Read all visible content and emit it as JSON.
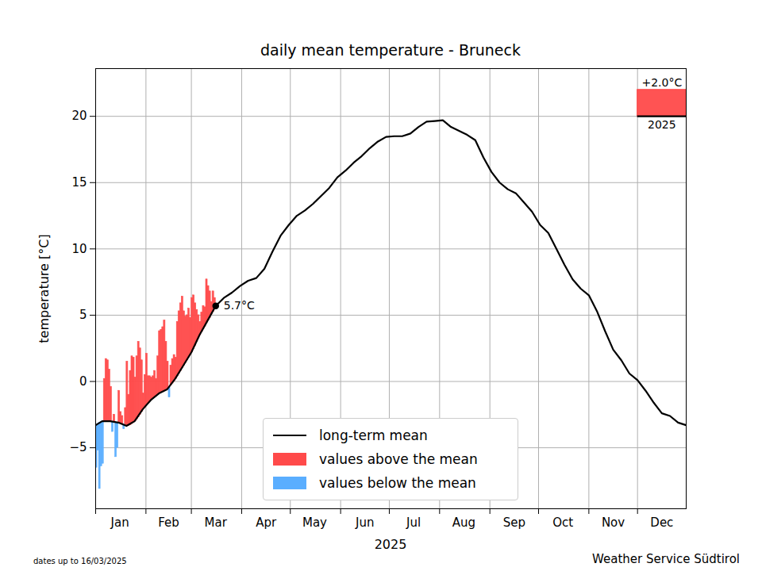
{
  "chart_data": {
    "type": "bar",
    "title": "daily mean temperature - Bruneck",
    "xlabel": "2025",
    "ylabel": "temperature [°C]",
    "xlim": [
      1,
      365
    ],
    "ylim": [
      -9.6,
      23.6
    ],
    "yticks": [
      -5,
      0,
      5,
      10,
      15,
      20
    ],
    "xticks": [
      {
        "value": 16,
        "label": "Jan"
      },
      {
        "value": 46,
        "label": "Feb"
      },
      {
        "value": 75,
        "label": "Mar"
      },
      {
        "value": 106,
        "label": "Apr"
      },
      {
        "value": 136,
        "label": "May"
      },
      {
        "value": 167,
        "label": "Jun"
      },
      {
        "value": 197,
        "label": "Jul"
      },
      {
        "value": 228,
        "label": "Aug"
      },
      {
        "value": 259,
        "label": "Sep"
      },
      {
        "value": 289,
        "label": "Oct"
      },
      {
        "value": 320,
        "label": "Nov"
      },
      {
        "value": 350,
        "label": "Dec"
      }
    ],
    "month_starts": [
      1,
      32,
      60,
      91,
      121,
      152,
      182,
      213,
      244,
      274,
      305,
      335
    ],
    "grid": true,
    "legend": "lower center",
    "series": [
      {
        "name": "long-term mean",
        "type": "line",
        "color": "#000000",
        "x": [
          1,
          5,
          10,
          15,
          20,
          25,
          30,
          35,
          40,
          45,
          50,
          55,
          60,
          65,
          70,
          75,
          80,
          85,
          90,
          95,
          100,
          105,
          110,
          115,
          120,
          125,
          130,
          135,
          140,
          145,
          150,
          155,
          160,
          165,
          170,
          175,
          180,
          185,
          190,
          195,
          200,
          205,
          210,
          215,
          220,
          225,
          230,
          235,
          240,
          245,
          250,
          255,
          260,
          265,
          270,
          275,
          280,
          285,
          290,
          295,
          300,
          305,
          310,
          315,
          320,
          325,
          330,
          335,
          340,
          345,
          350,
          355,
          360,
          365
        ],
        "values": [
          -3.3,
          -3.0,
          -3.0,
          -3.1,
          -3.35,
          -3.0,
          -2.1,
          -1.4,
          -0.9,
          -0.6,
          0.2,
          1.2,
          2.2,
          3.5,
          4.6,
          5.7,
          6.3,
          6.7,
          7.2,
          7.6,
          7.8,
          8.5,
          9.8,
          11.0,
          11.8,
          12.5,
          12.9,
          13.4,
          14.0,
          14.6,
          15.4,
          15.9,
          16.5,
          17.0,
          17.6,
          18.1,
          18.45,
          18.5,
          18.5,
          18.7,
          19.2,
          19.6,
          19.65,
          19.7,
          19.2,
          18.9,
          18.6,
          18.2,
          16.9,
          15.8,
          15.0,
          14.5,
          14.2,
          13.5,
          12.8,
          11.8,
          11.2,
          10.0,
          8.8,
          7.7,
          7.0,
          6.5,
          5.3,
          3.8,
          2.4,
          1.6,
          0.6,
          0.1,
          -0.7,
          -1.6,
          -2.4,
          -2.6,
          -3.1,
          -3.3
        ]
      },
      {
        "name": "values above the mean",
        "type": "bar",
        "color": "#ff4a4a",
        "x": [
          6,
          7,
          8,
          9,
          10,
          12,
          15,
          16,
          17,
          19,
          20,
          21,
          22,
          23,
          24,
          25,
          26,
          27,
          28,
          29,
          30,
          31,
          32,
          33,
          34,
          35,
          36,
          37,
          38,
          39,
          40,
          41,
          42,
          43,
          44,
          45,
          47,
          48,
          49,
          50,
          51,
          52,
          53,
          54,
          55,
          56,
          57,
          58,
          59,
          60,
          61,
          62,
          63,
          64,
          65,
          66,
          67,
          68,
          69,
          70,
          71,
          72,
          73,
          74
        ],
        "values": [
          0.2,
          1.7,
          1.6,
          0.9,
          -0.4,
          -2.5,
          -0.7,
          -2.3,
          -2.6,
          -2.0,
          1.5,
          -1.0,
          0.8,
          1.9,
          1.8,
          0.3,
          1.9,
          3.0,
          2.5,
          1.6,
          -0.9,
          0.5,
          2.1,
          0.4,
          0.4,
          0.3,
          0.4,
          0.8,
          0.2,
          1.9,
          3.8,
          3.9,
          4.1,
          4.6,
          3.0,
          1.5,
          1.2,
          1.7,
          2.0,
          1.8,
          4.5,
          5.3,
          5.9,
          6.4,
          5.3,
          4.9,
          5.0,
          5.5,
          4.8,
          6.3,
          6.5,
          5.9,
          5.4,
          5.0,
          4.5,
          5.2,
          5.7,
          5.6,
          7.7,
          7.2,
          6.8,
          6.0,
          6.8,
          6.3
        ],
        "base": [
          -3.0,
          -3.0,
          -3.0,
          -3.0,
          -3.0,
          -3.05,
          -3.1,
          -3.15,
          -3.2,
          -3.3,
          -3.35,
          -3.35,
          -3.3,
          -3.2,
          -3.1,
          -3.0,
          -2.85,
          -2.7,
          -2.5,
          -2.3,
          -2.1,
          -1.95,
          -1.8,
          -1.65,
          -1.5,
          -1.4,
          -1.3,
          -1.2,
          -1.1,
          -1.0,
          -0.9,
          -0.85,
          -0.8,
          -0.7,
          -0.65,
          -0.6,
          -0.3,
          -0.15,
          0.0,
          0.2,
          0.4,
          0.6,
          0.8,
          1.0,
          1.2,
          1.4,
          1.6,
          1.8,
          2.0,
          2.2,
          2.45,
          2.7,
          3.0,
          3.25,
          3.5,
          3.7,
          3.95,
          4.15,
          4.4,
          4.6,
          4.8,
          5.05,
          5.25,
          5.5
        ]
      },
      {
        "name": "values below the mean",
        "type": "bar",
        "color": "#5aaeff",
        "x": [
          1,
          2,
          3,
          4,
          5,
          11,
          13,
          14,
          18,
          46
        ],
        "values": [
          -6.5,
          -5.2,
          -8.1,
          -6.4,
          -6.2,
          -3.8,
          -5.7,
          -5.0,
          -3.6,
          -1.2
        ],
        "base": [
          -3.3,
          -3.2,
          -3.1,
          -3.05,
          -3.0,
          -3.05,
          -3.1,
          -3.1,
          -3.25,
          -0.45
        ]
      }
    ],
    "annotation": {
      "x": 75,
      "value": 5.7,
      "label": "5.7°C"
    },
    "inset": {
      "base": 20,
      "value": 2.0,
      "label": "+2.0°C",
      "caption": "2025",
      "color": "#ff4a4a"
    },
    "footnote": "dates up to 16/03/2025",
    "source": "Weather Service Südtirol"
  }
}
